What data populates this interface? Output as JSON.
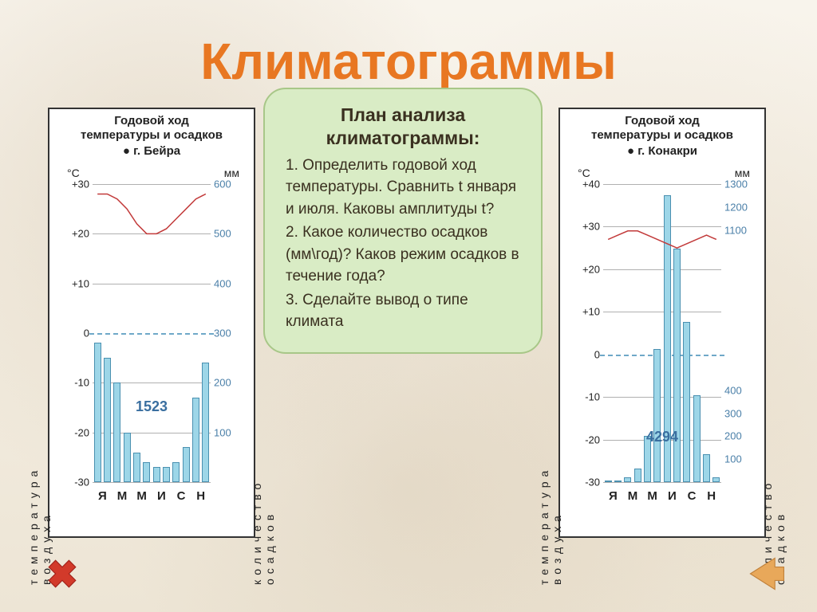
{
  "title": "Климатограммы",
  "analysis": {
    "heading": "План анализа климатограммы:",
    "items": [
      "Определить годовой ход температуры. Сравнить t января и июля. Каковы амплитуды t?",
      "Какое количество осадков (мм\\год)? Каков режим осадков в течение года?",
      "Сделайте вывод о типе климата"
    ]
  },
  "left_chart": {
    "header1": "Годовой ход",
    "header2": "температуры и осадков",
    "city": "г. Бейра",
    "temp_label": "температура воздуха",
    "precip_label": "количество осадков",
    "temp_unit": "°C",
    "precip_unit": "мм",
    "temp_ticks": [
      "+30",
      "+20",
      "+10",
      "0",
      "-10",
      "-20",
      "-30"
    ],
    "precip_ticks": [
      "600",
      "500",
      "400",
      "300",
      "200",
      "100"
    ],
    "temp_min": -30,
    "temp_max": 30,
    "precip_min": 0,
    "precip_max": 600,
    "x_ticks_shown": [
      "Я",
      "М",
      "М",
      "И",
      "С",
      "Н"
    ],
    "bars_mm": [
      280,
      250,
      200,
      100,
      60,
      40,
      30,
      30,
      40,
      70,
      170,
      240
    ],
    "temp_c": [
      28,
      28,
      27,
      25,
      22,
      20,
      20,
      21,
      23,
      25,
      27,
      28
    ],
    "annual_total": "1523",
    "annual_top_pct": 72,
    "line_color": "#c23a3a",
    "bar_fill": "#9dd6e8",
    "bar_stroke": "#4a90b0",
    "grid_color": "#b0b0b0",
    "zero_color": "#6fa8c8"
  },
  "right_chart": {
    "header1": "Годовой ход",
    "header2": "температуры и осадков",
    "city": "г. Конакри",
    "temp_label": "температура воздуха",
    "precip_label": "количество осадков",
    "temp_unit": "°C",
    "precip_unit": "мм",
    "temp_ticks": [
      "+40",
      "+30",
      "+20",
      "+10",
      "0",
      "-10",
      "-20",
      "-30"
    ],
    "precip_ticks": [
      "1300",
      "1200",
      "1100",
      "400",
      "300",
      "200",
      "100"
    ],
    "temp_min": -30,
    "temp_max": 40,
    "precip_min": 0,
    "precip_max": 1300,
    "x_ticks_shown": [
      "Я",
      "М",
      "М",
      "И",
      "С",
      "Н"
    ],
    "bars_mm": [
      5,
      5,
      20,
      60,
      200,
      580,
      1250,
      1020,
      700,
      380,
      120,
      20
    ],
    "temp_c": [
      27,
      28,
      29,
      29,
      28,
      27,
      26,
      25,
      26,
      27,
      28,
      27
    ],
    "annual_total": "4294",
    "annual_top_pct": 82,
    "line_color": "#c23a3a",
    "bar_fill": "#9dd6e8",
    "bar_stroke": "#4a90b0",
    "grid_color": "#b0b0b0",
    "zero_color": "#6fa8c8"
  },
  "icons": {
    "close_color": "#d23a2a",
    "back_color": "#e8a85a"
  }
}
